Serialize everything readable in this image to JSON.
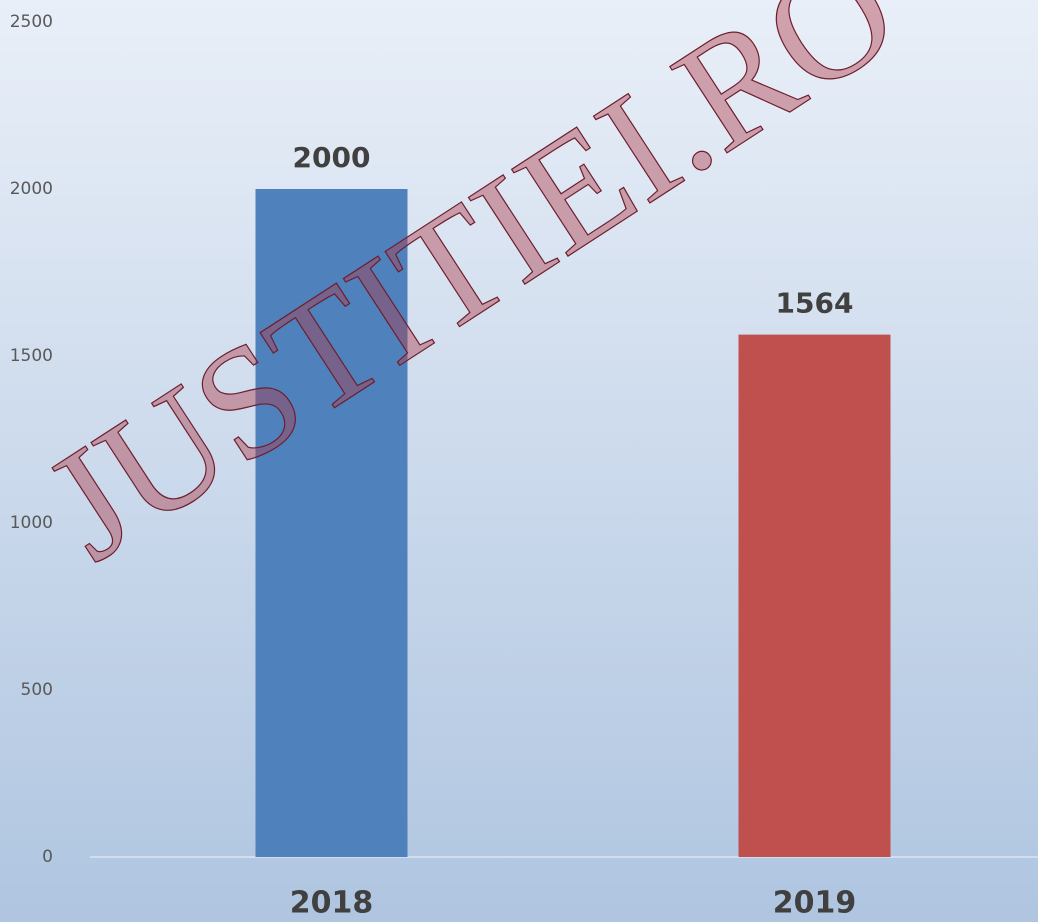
{
  "chart_data": {
    "type": "bar",
    "categories": [
      "2018",
      "2019"
    ],
    "values": [
      2000,
      1564
    ],
    "colors": [
      "#4f81bd",
      "#c0504d"
    ],
    "ylim": [
      0,
      2500
    ],
    "yticks": [
      0,
      500,
      1000,
      1500,
      2000,
      2500
    ],
    "grid": false,
    "watermark": "JUSTITIEI.RO"
  }
}
